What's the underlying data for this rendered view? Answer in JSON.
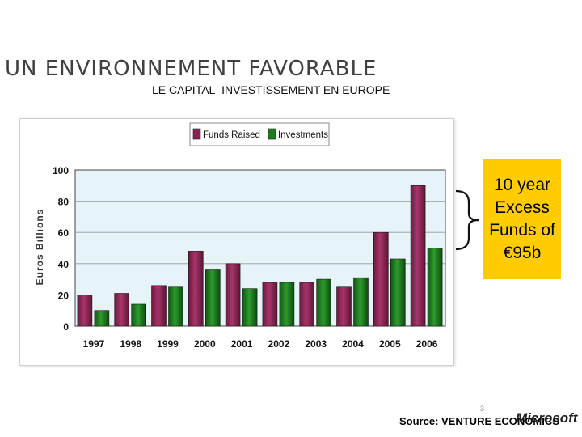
{
  "slide": {
    "title": "UN ENVIRONNEMENT FAVORABLE",
    "subtitle": "LE CAPITAL–INVESTISSEMENT EN EUROPE",
    "callout_text": "10 year Excess Funds of €95b",
    "source": "Source: VENTURE ECONOMICS",
    "page_number": "3",
    "logo": "Microsoft"
  },
  "colors": {
    "funds_raised": "#8B2252",
    "investments": "#1E7A1E",
    "plot_bg": "#E6F3F8",
    "callout_bg": "#FFCC00"
  },
  "chart_data": {
    "type": "bar",
    "title": "",
    "xlabel": "",
    "ylabel": "Euros Billions",
    "ylim": [
      0,
      100
    ],
    "yticks": [
      "0",
      "20",
      "40",
      "60",
      "80",
      "100"
    ],
    "categories": [
      "1997",
      "1998",
      "1999",
      "2000",
      "2001",
      "2002",
      "2003",
      "2004",
      "2005",
      "2006"
    ],
    "series": [
      {
        "name": "Funds Raised",
        "values": [
          20,
          21,
          26,
          48,
          40,
          28,
          28,
          25,
          60,
          90
        ]
      },
      {
        "name": "Investments",
        "values": [
          10,
          14,
          25,
          36,
          24,
          28,
          30,
          31,
          43,
          50
        ]
      }
    ],
    "grid": true,
    "legend": "top"
  }
}
